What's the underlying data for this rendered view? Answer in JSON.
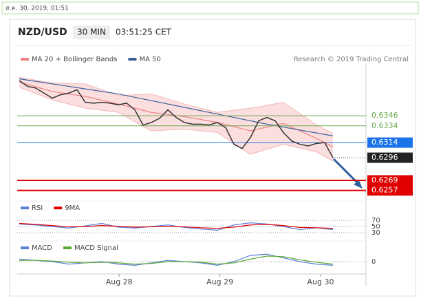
{
  "timestamp": "ส.ค. 30, 2019, 01:51",
  "header": {
    "pair": "NZD/USD",
    "interval": "30 MIN",
    "time": "03:51:25 CET"
  },
  "chart_data": [
    {
      "type": "line",
      "credit": "Research © 2019 Trading Central",
      "x": [
        0,
        1,
        2,
        3,
        4,
        5,
        6,
        7,
        8,
        9,
        10,
        11,
        12,
        13,
        14,
        15,
        16,
        17,
        18,
        19,
        20,
        21,
        22,
        23,
        24,
        25,
        26,
        27,
        28,
        29,
        30,
        31,
        32,
        33,
        34,
        35,
        36,
        37,
        38
      ],
      "values": [
        0.6388,
        0.6381,
        0.6379,
        0.6373,
        0.6367,
        0.6371,
        0.6373,
        0.6377,
        0.6362,
        0.6361,
        0.6362,
        0.6361,
        0.6359,
        0.6361,
        0.6353,
        0.6335,
        0.6338,
        0.6343,
        0.6353,
        0.6344,
        0.6338,
        0.6336,
        0.6336,
        0.6335,
        0.6338,
        0.6332,
        0.6312,
        0.6307,
        0.632,
        0.634,
        0.6344,
        0.634,
        0.6326,
        0.6316,
        0.6312,
        0.631,
        0.6313,
        0.6314,
        0.6296
      ],
      "color": "#333333",
      "series": [
        {
          "name": "MA 20 + Bollinger Bands",
          "color": "#f08080",
          "x": [
            0,
            4,
            8,
            12,
            16,
            20,
            24,
            28,
            32,
            36,
            38
          ],
          "values": [
            0.6386,
            0.6375,
            0.6369,
            0.636,
            0.635,
            0.6345,
            0.6338,
            0.6328,
            0.6337,
            0.6319,
            0.6309
          ],
          "upper": [
            0.6392,
            0.6385,
            0.6384,
            0.637,
            0.6372,
            0.636,
            0.635,
            0.6355,
            0.6362,
            0.6335,
            0.6325
          ],
          "lower": [
            0.638,
            0.6365,
            0.6355,
            0.635,
            0.6328,
            0.633,
            0.6326,
            0.63,
            0.6312,
            0.6303,
            0.6292
          ]
        },
        {
          "name": "MA 50",
          "color": "#3a5f9a",
          "x": [
            0,
            6,
            12,
            18,
            24,
            30,
            38
          ],
          "values": [
            0.639,
            0.6381,
            0.6372,
            0.636,
            0.6348,
            0.6336,
            0.6322
          ]
        }
      ],
      "levels": [
        {
          "value": 0.6346,
          "color": "#6aa84f",
          "boxed": false
        },
        {
          "value": 0.6334,
          "color": "#6aa84f",
          "boxed": false
        },
        {
          "value": 0.6314,
          "color": "#1a73e8",
          "boxed": true
        },
        {
          "value": 0.6296,
          "color": "#222222",
          "boxed": true,
          "dotted": true
        },
        {
          "value": 0.6269,
          "color": "#e00000",
          "boxed": true
        },
        {
          "value": 0.6257,
          "color": "#e00000",
          "boxed": true
        }
      ],
      "xlim": [
        0,
        42
      ],
      "ylim": [
        0.6246,
        0.6406
      ]
    },
    {
      "type": "line",
      "xlim": [
        0,
        42
      ],
      "ylim": [
        20,
        80
      ],
      "yticks": [
        70,
        50,
        30
      ],
      "series": [
        {
          "name": "RSI",
          "color": "#5b7fd6",
          "x": [
            0,
            2,
            4,
            6,
            8,
            10,
            12,
            14,
            16,
            18,
            20,
            22,
            24,
            26,
            28,
            30,
            32,
            34,
            36,
            38
          ],
          "values": [
            58,
            55,
            50,
            45,
            52,
            60,
            48,
            45,
            50,
            55,
            47,
            42,
            38,
            55,
            62,
            58,
            50,
            40,
            46,
            40
          ]
        },
        {
          "name": "9MA",
          "color": "#e00000",
          "x": [
            0,
            2,
            4,
            6,
            8,
            10,
            12,
            14,
            16,
            18,
            20,
            22,
            24,
            26,
            28,
            30,
            32,
            34,
            36,
            38
          ],
          "values": [
            60,
            57,
            53,
            49,
            50,
            53,
            51,
            48,
            49,
            51,
            49,
            46,
            44,
            48,
            55,
            57,
            53,
            47,
            46,
            44
          ]
        }
      ]
    },
    {
      "type": "line",
      "xlim": [
        0,
        42
      ],
      "ylim": [
        -1,
        1
      ],
      "yticks": [
        0
      ],
      "xticks": [
        {
          "value": 12.1,
          "label": "Aug 28"
        },
        {
          "value": 24.3,
          "label": "Aug 29"
        },
        {
          "value": 36.5,
          "label": "Aug 30"
        }
      ],
      "series": [
        {
          "name": "MACD",
          "color": "#5b7fd6",
          "x": [
            0,
            2,
            4,
            6,
            8,
            10,
            12,
            14,
            16,
            18,
            20,
            22,
            24,
            26,
            28,
            30,
            32,
            34,
            36,
            38
          ],
          "values": [
            0.2,
            0.1,
            0,
            -0.2,
            -0.1,
            0,
            -0.2,
            -0.3,
            -0.1,
            0.1,
            0,
            -0.1,
            -0.3,
            0,
            0.5,
            0.6,
            0.3,
            0,
            -0.2,
            -0.3
          ]
        },
        {
          "name": "MACD Signal",
          "color": "#5aa832",
          "x": [
            0,
            2,
            4,
            6,
            8,
            10,
            12,
            14,
            16,
            18,
            20,
            22,
            24,
            26,
            28,
            30,
            32,
            34,
            36,
            38
          ],
          "values": [
            0.1,
            0.1,
            0.05,
            -0.05,
            -0.1,
            -0.05,
            -0.1,
            -0.2,
            -0.15,
            0,
            0,
            -0.05,
            -0.2,
            -0.1,
            0.2,
            0.45,
            0.4,
            0.15,
            -0.05,
            -0.2
          ]
        }
      ]
    }
  ]
}
